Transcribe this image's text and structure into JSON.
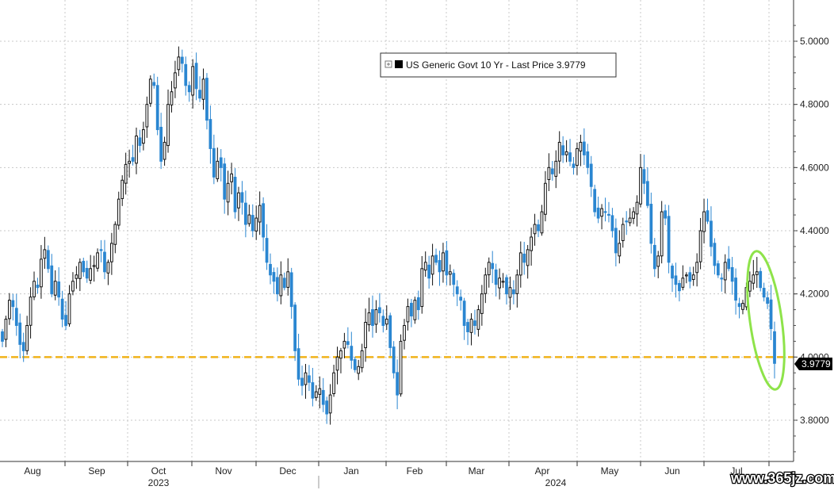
{
  "chart_data": {
    "type": "candlestick",
    "legend": {
      "label": "US Generic Govt 10 Yr - Last Price 3.9779",
      "position": "top-center"
    },
    "last_price": 3.9779,
    "last_price_label": "3.9779",
    "reference_level": 4.0,
    "ylim": [
      3.68,
      5.1
    ],
    "y_ticks": [
      3.8,
      4.0,
      4.2,
      4.4,
      4.6,
      4.8,
      5.0
    ],
    "y_tick_labels": [
      "3.8000",
      "4.0000",
      "4.2000",
      "4.4000",
      "4.6000",
      "4.8000",
      "5.0000"
    ],
    "month_labels": [
      "Aug",
      "Sep",
      "Oct",
      "Nov",
      "Dec",
      "Jan",
      "Feb",
      "Mar",
      "Apr",
      "May",
      "Jun",
      "Jul"
    ],
    "year_labels": [
      "2023",
      "2024"
    ],
    "grid": true,
    "series": [
      {
        "values": [
          4.05,
          4.12,
          4.18,
          4.16,
          4.1,
          4.04,
          4.02,
          4.1,
          4.19,
          4.24,
          4.22,
          4.31,
          4.34,
          4.28,
          4.2,
          4.24,
          4.19,
          4.12,
          4.1,
          4.2,
          4.24,
          4.26,
          4.3,
          4.27,
          4.25,
          4.28,
          4.29,
          4.33,
          4.34,
          4.27,
          4.3,
          4.36,
          4.42,
          4.5,
          4.56,
          4.61,
          4.62,
          4.62,
          4.7,
          4.67,
          4.72,
          4.8,
          4.88,
          4.86,
          4.72,
          4.62,
          4.68,
          4.8,
          4.84,
          4.9,
          4.95,
          4.93,
          4.86,
          4.84,
          4.92,
          4.85,
          4.82,
          4.88,
          4.75,
          4.66,
          4.57,
          4.62,
          4.6,
          4.5,
          4.55,
          4.58,
          4.46,
          4.52,
          4.49,
          4.42,
          4.45,
          4.4,
          4.44,
          4.48,
          4.38,
          4.3,
          4.26,
          4.24,
          4.2,
          4.26,
          4.22,
          4.27,
          4.16,
          4.02,
          3.93,
          3.91,
          3.95,
          3.92,
          3.87,
          3.89,
          3.9,
          3.85,
          3.82,
          3.88,
          3.95,
          4.0,
          4.02,
          4.05,
          4.04,
          3.99,
          3.96,
          3.97,
          4.02,
          4.11,
          4.14,
          4.1,
          4.15,
          4.14,
          4.1,
          4.12,
          4.03,
          3.95,
          3.88,
          4.05,
          4.1,
          4.16,
          4.13,
          4.18,
          4.15,
          4.28,
          4.3,
          4.25,
          4.32,
          4.3,
          4.27,
          4.33,
          4.26,
          4.27,
          4.23,
          4.2,
          4.18,
          4.1,
          4.08,
          4.12,
          4.1,
          4.15,
          4.2,
          4.26,
          4.3,
          4.28,
          4.23,
          4.25,
          4.24,
          4.2,
          4.22,
          4.2,
          4.26,
          4.33,
          4.3,
          4.34,
          4.38,
          4.42,
          4.4,
          4.46,
          4.55,
          4.6,
          4.58,
          4.62,
          4.68,
          4.64,
          4.65,
          4.62,
          4.6,
          4.66,
          4.68,
          4.64,
          4.6,
          4.54,
          4.46,
          4.44,
          4.47,
          4.46,
          4.45,
          4.4,
          4.33,
          4.36,
          4.42,
          4.43,
          4.44,
          4.46,
          4.49,
          4.6,
          4.55,
          4.48,
          4.36,
          4.28,
          4.32,
          4.46,
          4.44,
          4.3,
          4.25,
          4.23,
          4.21,
          4.25,
          4.26,
          4.24,
          4.26,
          4.3,
          4.4,
          4.46,
          4.43,
          4.35,
          4.29,
          4.26,
          4.25,
          4.3,
          4.28,
          4.24,
          4.18,
          4.16,
          4.17,
          4.22,
          4.24,
          4.26,
          4.27,
          4.22,
          4.19,
          4.17,
          4.09,
          3.98
        ]
      }
    ]
  },
  "watermark": "www.365jz.com"
}
